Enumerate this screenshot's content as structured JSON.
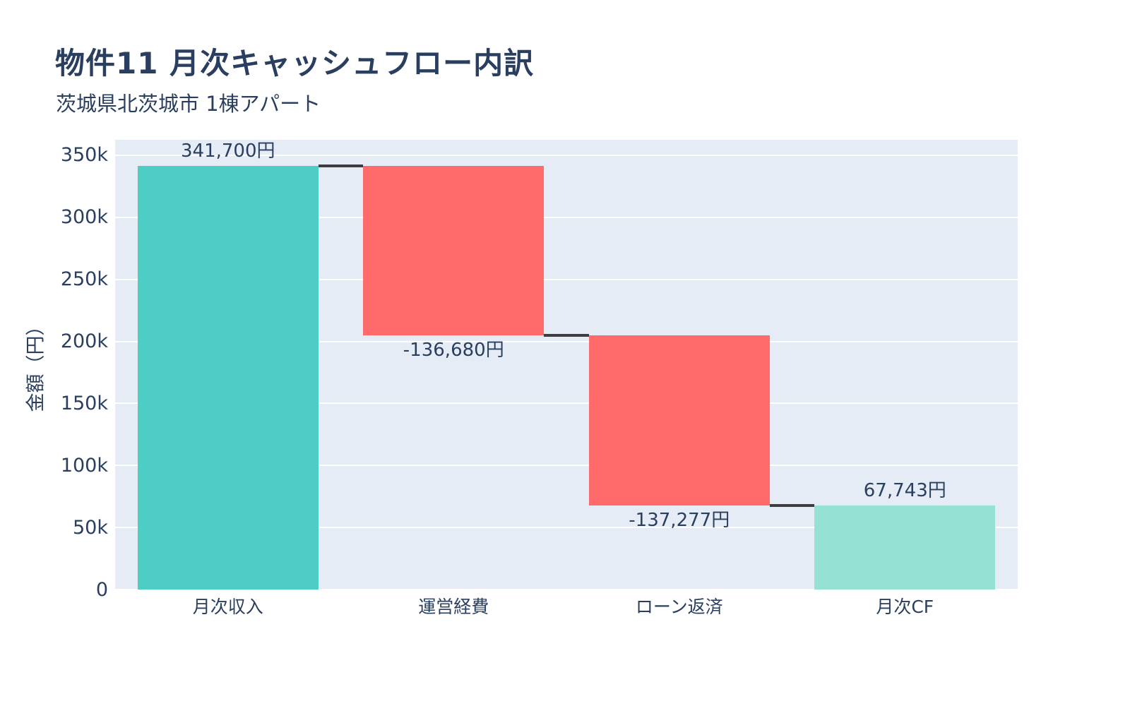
{
  "chart_data": {
    "type": "waterfall",
    "title": "物件11 月次キャッシュフロー内訳",
    "subtitle": "茨城県北茨城市 1棟アパート",
    "ylabel": "金額（円）",
    "xlabel": "",
    "categories": [
      "月次収入",
      "運営経費",
      "ローン返済",
      "月次CF"
    ],
    "measures": [
      "relative",
      "relative",
      "relative",
      "total"
    ],
    "values": [
      341700,
      -136680,
      -137277,
      67743
    ],
    "bar_labels": [
      "341,700円",
      "-136,680円",
      "-137,277円",
      "67,743円"
    ],
    "running_totals": [
      341700,
      205020,
      67743,
      67743
    ],
    "ytick_values": [
      0,
      50000,
      100000,
      150000,
      200000,
      250000,
      300000,
      350000
    ],
    "ytick_labels": [
      "0",
      "50k",
      "100k",
      "150k",
      "200k",
      "250k",
      "300k",
      "350k"
    ],
    "ylim": [
      0,
      362500
    ],
    "grid": true,
    "legend_position": "none",
    "colors": {
      "increasing": "#4ECDC4",
      "decreasing": "#FF6B6B",
      "total": "#95E1D3",
      "connector": "#3D3D3D",
      "plot_background": "#E5ECF6",
      "gridline": "#FFFFFF",
      "text": "#2A3F5F"
    }
  }
}
